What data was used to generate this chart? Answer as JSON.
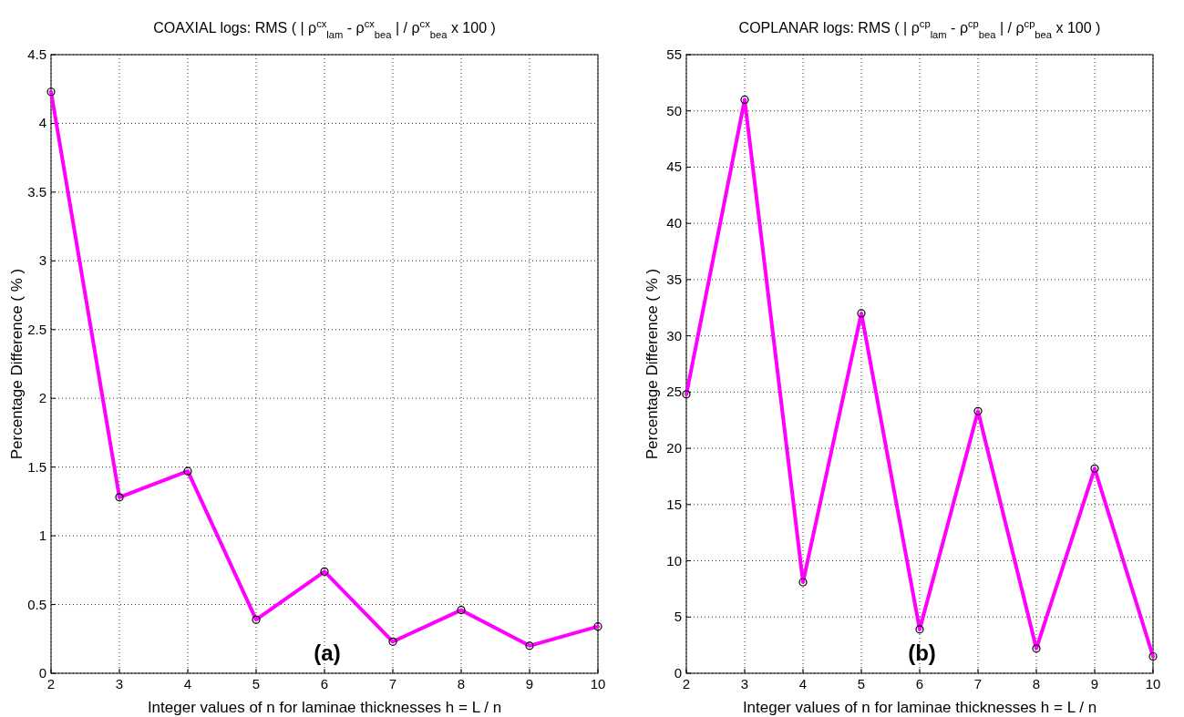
{
  "chart_data": [
    {
      "type": "line",
      "title": "COAXIAL logs:  RMS ( | ρ$^{cx}$$_{lam}$ - ρ$^{cx}$$_{bea}$ | / ρ$^{cx}$$_{bea}$  x 100 )",
      "xlabel": "Integer values of  n for laminae thicknesses h = L / n",
      "ylabel": "Percentage Difference ( % )",
      "x": [
        2,
        3,
        4,
        5,
        6,
        7,
        8,
        9,
        10
      ],
      "series": [
        {
          "color": "#ff00ff",
          "values": [
            4.23,
            1.28,
            1.47,
            0.39,
            0.74,
            0.23,
            0.46,
            0.2,
            0.34
          ]
        }
      ],
      "xlim": [
        2,
        10
      ],
      "xticks": [
        2,
        3,
        4,
        5,
        6,
        7,
        8,
        9,
        10
      ],
      "ylim": [
        0,
        4.5
      ],
      "yticks": [
        0,
        0.5,
        1,
        1.5,
        2,
        2.5,
        3,
        3.5,
        4,
        4.5
      ],
      "grid": true,
      "marker": "circle",
      "line_style": "solid",
      "annotations": [
        "(a)"
      ]
    },
    {
      "type": "line",
      "title": "COPLANAR logs:  RMS ( | ρ$^{cp}$$_{lam}$ - ρ$^{cp}$$_{bea}$ | / ρ$^{cp}$$_{bea}$  x 100 )",
      "xlabel": "Integer values of  n for laminae thicknesses h = L / n",
      "ylabel": "Percentage Difference ( % )",
      "x": [
        2,
        3,
        4,
        5,
        6,
        7,
        8,
        9,
        10
      ],
      "series": [
        {
          "color": "#ff00ff",
          "values": [
            24.8,
            51,
            8.1,
            32,
            3.9,
            23.3,
            2.2,
            18.2,
            1.5
          ]
        }
      ],
      "xlim": [
        2,
        10
      ],
      "xticks": [
        2,
        3,
        4,
        5,
        6,
        7,
        8,
        9,
        10
      ],
      "ylim": [
        0,
        55
      ],
      "yticks": [
        0,
        5,
        10,
        15,
        20,
        25,
        30,
        35,
        40,
        45,
        50,
        55
      ],
      "grid": true,
      "marker": "circle",
      "line_style": "solid",
      "annotations": [
        "(b)"
      ]
    }
  ]
}
